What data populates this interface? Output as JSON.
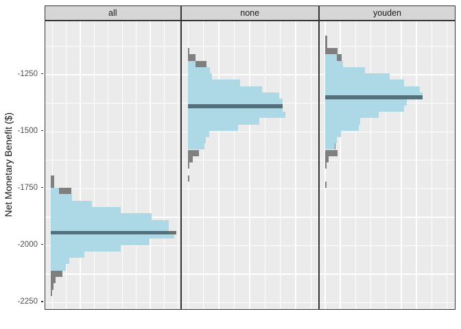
{
  "chart_data": {
    "type": "histogram",
    "orientation": "horizontal",
    "title": "",
    "xlabel": "",
    "ylabel": "Net Monetary Benefit ($)",
    "y_ticks": [
      -1250,
      -1500,
      -1750,
      -2000,
      -2250
    ],
    "y_axis_range": [
      -2330,
      -1060
    ],
    "bin_width": 28,
    "grid": "on",
    "legend": "none",
    "bar_units": "b (blue bar) and g (gray bar behind) are lengths relative to the longest bin of each facet; v is the bin's top edge value in $",
    "colors": {
      "bar_fill": "#ADD9E6",
      "tail_fill": "#7F7F7F",
      "median_line": "#53707B",
      "panel_bg": "#EBEBEB",
      "strip_bg": "#D6D6D6",
      "gridline": "#FFFFFF",
      "border": "#333333",
      "tick_text": "#4D4D4D"
    },
    "facets": [
      {
        "label": "all",
        "median": -1945,
        "median_len": 0.953,
        "median_tip": 0.064,
        "bins": [
          {
            "v": -1693,
            "b": 0,
            "g": 0.028
          },
          {
            "v": -1721,
            "b": 0,
            "g": 0.028
          },
          {
            "v": -1748,
            "b": 0.067,
            "g": 0.167
          },
          {
            "v": -1776,
            "b": 0.172,
            "g": 0
          },
          {
            "v": -1804,
            "b": 0.333,
            "g": 0
          },
          {
            "v": -1832,
            "b": 0.567,
            "g": 0
          },
          {
            "v": -1860,
            "b": 0.817,
            "g": 0
          },
          {
            "v": -1888,
            "b": 0.956,
            "g": 0
          },
          {
            "v": -1916,
            "b": 0.956,
            "g": 0
          },
          {
            "v": -1944,
            "b": 1.0,
            "g": 0
          },
          {
            "v": -1972,
            "b": 0.8,
            "g": 0
          },
          {
            "v": -2000,
            "b": 0.567,
            "g": 0
          },
          {
            "v": -2028,
            "b": 0.272,
            "g": 0
          },
          {
            "v": -2055,
            "b": 0.15,
            "g": 0
          },
          {
            "v": -2083,
            "b": 0.122,
            "g": 0
          },
          {
            "v": -2111,
            "b": 0,
            "g": 0.094
          },
          {
            "v": -2139,
            "b": 0,
            "g": 0.039
          },
          {
            "v": -2167,
            "b": 0,
            "g": 0.022
          },
          {
            "v": -2195,
            "b": 0,
            "g": 0.011
          }
        ]
      },
      {
        "label": "none",
        "median": -1390,
        "median_len": 0.97,
        "median_tip": 0,
        "bins": [
          {
            "v": -1134,
            "b": 0,
            "g": 0.014
          },
          {
            "v": -1162,
            "b": 0,
            "g": 0.077
          },
          {
            "v": -1190,
            "b": 0.077,
            "g": 0.19
          },
          {
            "v": -1218,
            "b": 0.225,
            "g": 0
          },
          {
            "v": -1246,
            "b": 0.246,
            "g": 0
          },
          {
            "v": -1274,
            "b": 0.535,
            "g": 0
          },
          {
            "v": -1302,
            "b": 0.761,
            "g": 0
          },
          {
            "v": -1330,
            "b": 0.937,
            "g": 0
          },
          {
            "v": -1358,
            "b": 0.972,
            "g": 0
          },
          {
            "v": -1386,
            "b": 0.972,
            "g": 0
          },
          {
            "v": -1414,
            "b": 1.0,
            "g": 0
          },
          {
            "v": -1442,
            "b": 0.732,
            "g": 0
          },
          {
            "v": -1470,
            "b": 0.514,
            "g": 0
          },
          {
            "v": -1497,
            "b": 0.218,
            "g": 0
          },
          {
            "v": -1525,
            "b": 0.183,
            "g": 0
          },
          {
            "v": -1553,
            "b": 0.169,
            "g": 0
          },
          {
            "v": -1581,
            "b": 0,
            "g": 0.113
          },
          {
            "v": -1609,
            "b": 0,
            "g": 0.049
          },
          {
            "v": -1637,
            "b": 0,
            "g": 0.014
          },
          {
            "v": -1693,
            "b": 0,
            "g": 0.014
          }
        ]
      },
      {
        "label": "youden",
        "median": -1350,
        "median_len": 1.0,
        "median_tip": 0,
        "bins": [
          {
            "v": -1079,
            "b": 0,
            "g": 0.021
          },
          {
            "v": -1107,
            "b": 0,
            "g": 0.021
          },
          {
            "v": -1134,
            "b": 0,
            "g": 0.127
          },
          {
            "v": -1162,
            "b": 0.12,
            "g": 0.169
          },
          {
            "v": -1190,
            "b": 0.183,
            "g": 0
          },
          {
            "v": -1218,
            "b": 0.408,
            "g": 0
          },
          {
            "v": -1246,
            "b": 0.662,
            "g": 0
          },
          {
            "v": -1274,
            "b": 0.81,
            "g": 0
          },
          {
            "v": -1302,
            "b": 0.972,
            "g": 0
          },
          {
            "v": -1330,
            "b": 1.0,
            "g": 0
          },
          {
            "v": -1358,
            "b": 0.838,
            "g": 0
          },
          {
            "v": -1386,
            "b": 0.81,
            "g": 0
          },
          {
            "v": -1414,
            "b": 0.549,
            "g": 0
          },
          {
            "v": -1442,
            "b": 0.359,
            "g": 0
          },
          {
            "v": -1470,
            "b": 0.345,
            "g": 0
          },
          {
            "v": -1497,
            "b": 0.162,
            "g": 0
          },
          {
            "v": -1525,
            "b": 0.12,
            "g": 0
          },
          {
            "v": -1553,
            "b": 0.099,
            "g": 0.106
          },
          {
            "v": -1581,
            "b": 0,
            "g": 0.127
          },
          {
            "v": -1609,
            "b": 0,
            "g": 0.035
          },
          {
            "v": -1637,
            "b": 0,
            "g": 0.014
          },
          {
            "v": -1721,
            "b": 0,
            "g": 0.014
          }
        ]
      }
    ]
  }
}
